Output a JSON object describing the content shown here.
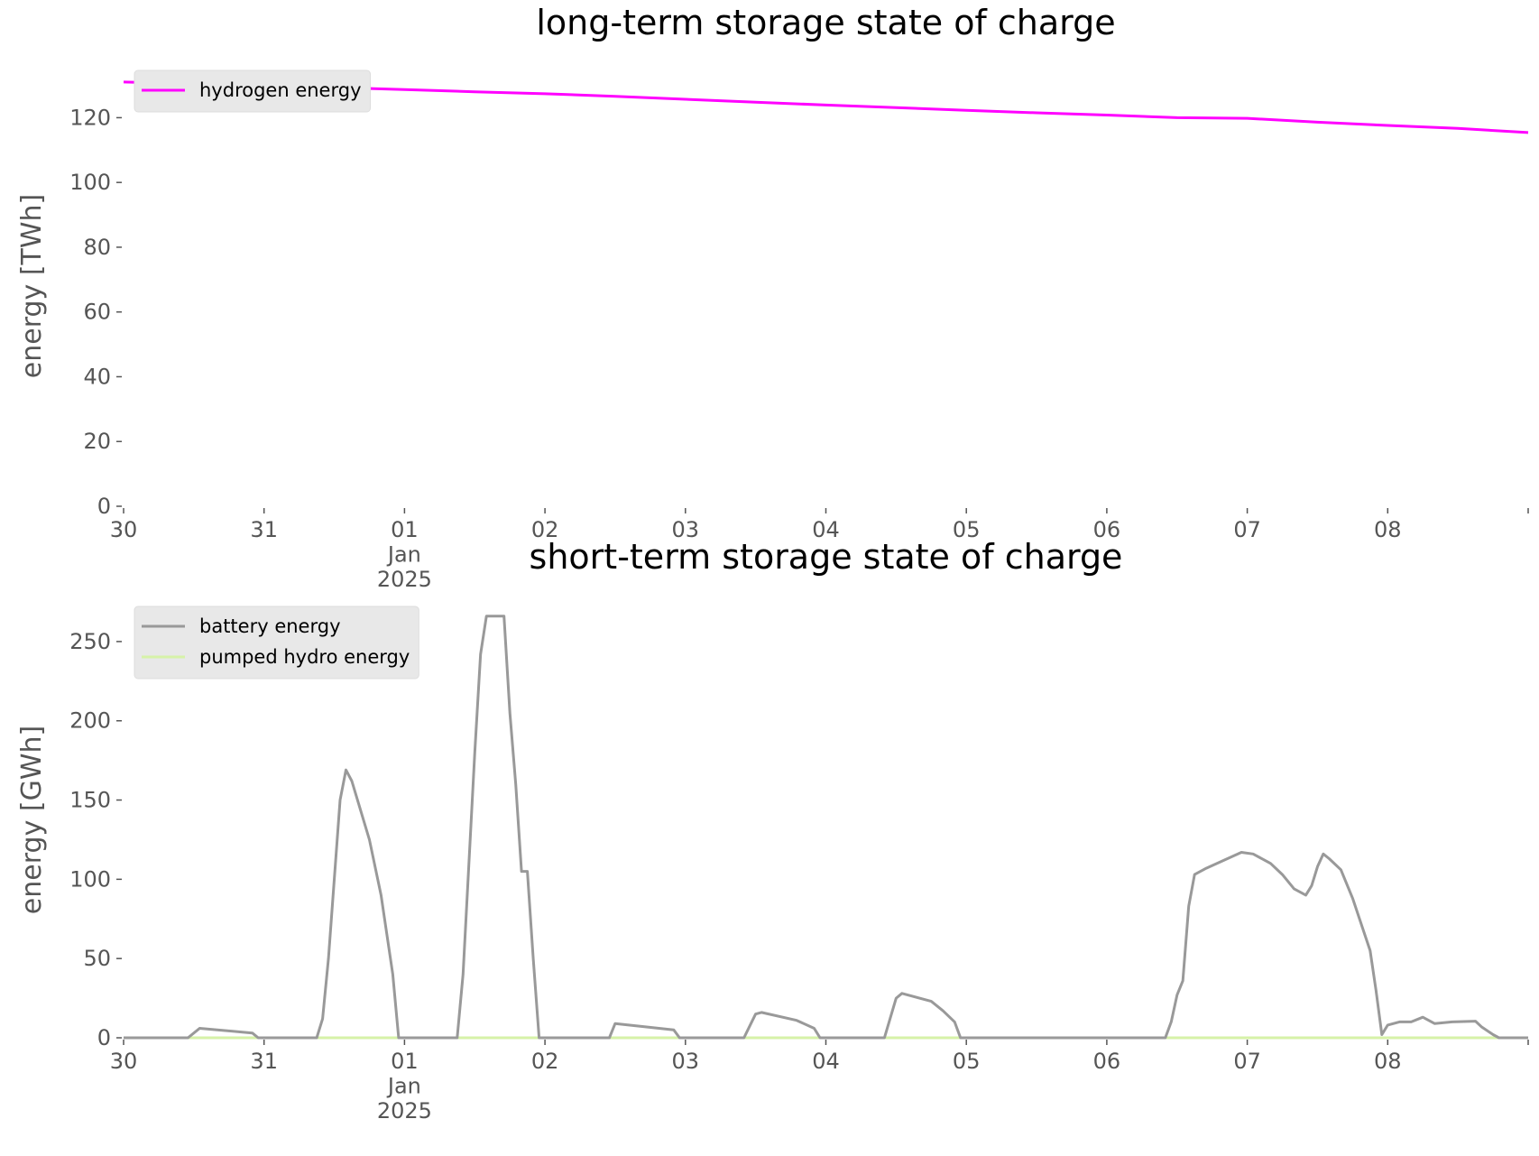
{
  "chart_data": [
    {
      "type": "line",
      "title": "long-term storage state of charge",
      "ylabel": "energy [TWh]",
      "xlim": [
        "2024-12-30T00:00",
        "2025-01-09T00:00"
      ],
      "xticks": [
        {
          "value": "2024-12-30T00:00",
          "label": "30"
        },
        {
          "value": "2024-12-31T00:00",
          "label": "31"
        },
        {
          "value": "2025-01-01T00:00",
          "label": "01\nJan\n2025"
        },
        {
          "value": "2025-01-02T00:00",
          "label": "02"
        },
        {
          "value": "2025-01-03T00:00",
          "label": "03"
        },
        {
          "value": "2025-01-04T00:00",
          "label": "04"
        },
        {
          "value": "2025-01-05T00:00",
          "label": "05"
        },
        {
          "value": "2025-01-06T00:00",
          "label": "06"
        },
        {
          "value": "2025-01-07T00:00",
          "label": "07"
        },
        {
          "value": "2025-01-08T00:00",
          "label": "08"
        }
      ],
      "ylim": [
        0,
        136
      ],
      "yticks": [
        0,
        20,
        40,
        60,
        80,
        100,
        120
      ],
      "legend": "upper left",
      "series": [
        {
          "name": "hydrogen energy",
          "color": "#ff00ff",
          "x": [
            "2024-12-30T00:00",
            "2024-12-30T12:00",
            "2024-12-31T00:00",
            "2024-12-31T12:00",
            "2025-01-01T00:00",
            "2025-01-01T12:00",
            "2025-01-02T00:00",
            "2025-01-02T12:00",
            "2025-01-03T00:00",
            "2025-01-03T12:00",
            "2025-01-04T00:00",
            "2025-01-04T12:00",
            "2025-01-05T00:00",
            "2025-01-05T12:00",
            "2025-01-06T00:00",
            "2025-01-06T12:00",
            "2025-01-07T00:00",
            "2025-01-07T12:00",
            "2025-01-08T00:00",
            "2025-01-08T12:00",
            "2025-01-09T00:00"
          ],
          "values": [
            131,
            130.5,
            129.9,
            129.3,
            128.7,
            128,
            127.4,
            126.6,
            125.7,
            124.8,
            123.9,
            123.1,
            122.3,
            121.5,
            120.8,
            120,
            119.8,
            118.6,
            117.6,
            116.7,
            115.4
          ]
        }
      ]
    },
    {
      "type": "line",
      "title": "short-term storage state of charge",
      "ylabel": "energy [GWh]",
      "xlim": [
        "2024-12-30T00:00",
        "2025-01-09T00:00"
      ],
      "xticks": [
        {
          "value": "2024-12-30T00:00",
          "label": "30"
        },
        {
          "value": "2024-12-31T00:00",
          "label": "31"
        },
        {
          "value": "2025-01-01T00:00",
          "label": "01\nJan\n2025"
        },
        {
          "value": "2025-01-02T00:00",
          "label": "02"
        },
        {
          "value": "2025-01-03T00:00",
          "label": "03"
        },
        {
          "value": "2025-01-04T00:00",
          "label": "04"
        },
        {
          "value": "2025-01-05T00:00",
          "label": "05"
        },
        {
          "value": "2025-01-06T00:00",
          "label": "06"
        },
        {
          "value": "2025-01-07T00:00",
          "label": "07"
        },
        {
          "value": "2025-01-08T00:00",
          "label": "08"
        }
      ],
      "ylim": [
        0,
        275
      ],
      "yticks": [
        0,
        50,
        100,
        150,
        200,
        250
      ],
      "legend": "upper left",
      "series": [
        {
          "name": "battery energy",
          "color": "#999999",
          "x": [
            "2024-12-30T00:00",
            "2024-12-30T11:00",
            "2024-12-30T13:00",
            "2024-12-30T22:00",
            "2024-12-30T23:00",
            "2024-12-31T09:00",
            "2024-12-31T10:00",
            "2024-12-31T11:00",
            "2024-12-31T13:00",
            "2024-12-31T14:00",
            "2024-12-31T15:00",
            "2024-12-31T18:00",
            "2024-12-31T20:00",
            "2024-12-31T21:00",
            "2024-12-31T22:00",
            "2024-12-31T23:00",
            "2025-01-01T09:00",
            "2025-01-01T10:00",
            "2025-01-01T12:00",
            "2025-01-01T13:00",
            "2025-01-01T14:00",
            "2025-01-01T17:00",
            "2025-01-01T18:00",
            "2025-01-01T19:00",
            "2025-01-01T20:00",
            "2025-01-01T21:00",
            "2025-01-01T22:00",
            "2025-01-01T23:00",
            "2025-01-02T11:00",
            "2025-01-02T12:00",
            "2025-01-02T22:00",
            "2025-01-02T23:00",
            "2025-01-03T10:00",
            "2025-01-03T12:00",
            "2025-01-03T13:00",
            "2025-01-03T19:00",
            "2025-01-03T22:00",
            "2025-01-03T23:00",
            "2025-01-04T10:00",
            "2025-01-04T12:00",
            "2025-01-04T13:00",
            "2025-01-04T18:00",
            "2025-01-04T20:00",
            "2025-01-04T22:00",
            "2025-01-04T23:00",
            "2025-01-06T10:00",
            "2025-01-06T11:00",
            "2025-01-06T12:00",
            "2025-01-06T13:00",
            "2025-01-06T14:00",
            "2025-01-06T15:00",
            "2025-01-06T17:00",
            "2025-01-06T23:00",
            "2025-01-07T01:00",
            "2025-01-07T04:00",
            "2025-01-07T06:00",
            "2025-01-07T08:00",
            "2025-01-07T10:00",
            "2025-01-07T11:00",
            "2025-01-07T12:00",
            "2025-01-07T13:00",
            "2025-01-07T14:00",
            "2025-01-07T16:00",
            "2025-01-07T18:00",
            "2025-01-07T21:00",
            "2025-01-07T22:00",
            "2025-01-07T23:00",
            "2025-01-08T00:00",
            "2025-01-08T02:00",
            "2025-01-08T04:00",
            "2025-01-08T06:00",
            "2025-01-08T08:00",
            "2025-01-08T11:00",
            "2025-01-08T15:00",
            "2025-01-08T16:00",
            "2025-01-08T18:00",
            "2025-01-08T19:00",
            "2025-01-09T00:00"
          ],
          "values": [
            0,
            0,
            6,
            3,
            0,
            0,
            12,
            50,
            150,
            169,
            162,
            125,
            90,
            65,
            40,
            0,
            0,
            40,
            180,
            242,
            266,
            266,
            205,
            160,
            105,
            105,
            50,
            0,
            0,
            9,
            5,
            0,
            0,
            15,
            16,
            11,
            6,
            0,
            0,
            25,
            28,
            23,
            17,
            10,
            0,
            0,
            10,
            27,
            36,
            83,
            103,
            107,
            117,
            116,
            110,
            103,
            94,
            90,
            96,
            108,
            116,
            113,
            106,
            88,
            55,
            30,
            2,
            8,
            10,
            10,
            13,
            9,
            10,
            10.5,
            7,
            2,
            0,
            0
          ]
        },
        {
          "name": "pumped hydro energy",
          "color": "#d6f2a8",
          "x": [
            "2024-12-30T00:00",
            "2025-01-09T00:00"
          ],
          "values": [
            0,
            0
          ]
        }
      ]
    }
  ]
}
